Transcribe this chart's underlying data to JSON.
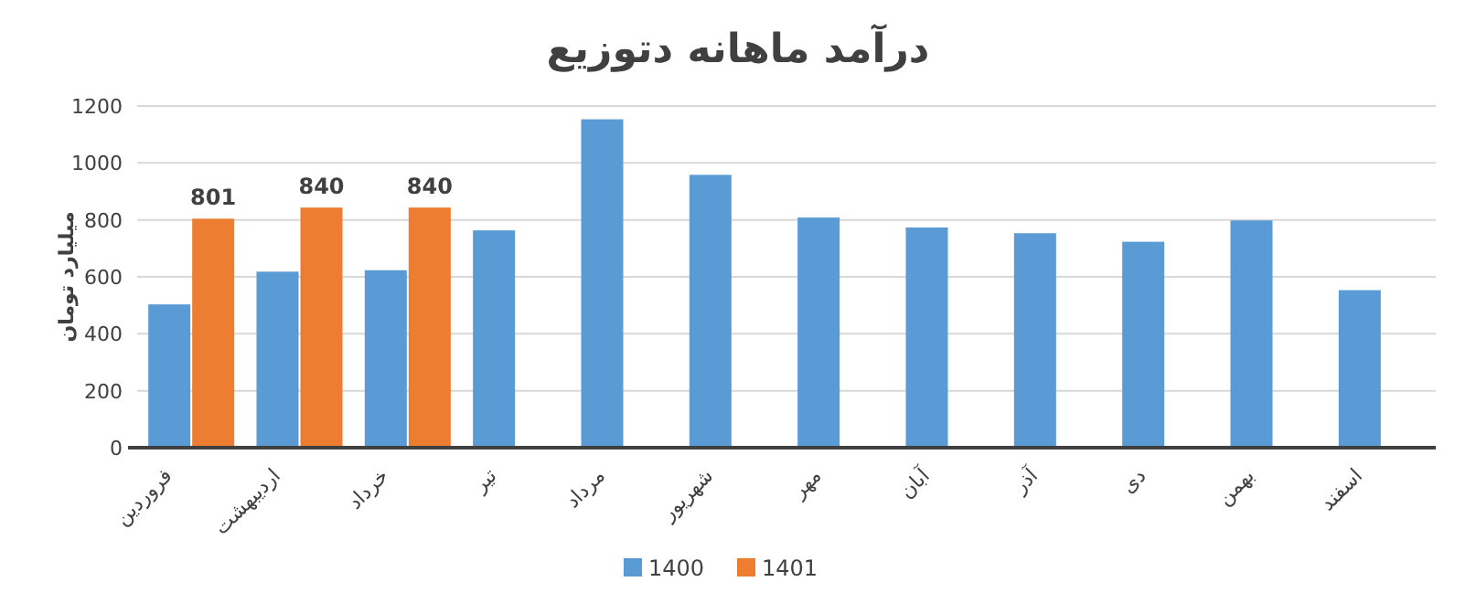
{
  "chart_data": {
    "type": "bar",
    "title": "درآمد ماهانه دتوزیع",
    "ylabel": "میلیارد تومان",
    "categories": [
      "فروردین",
      "اردیبهشت",
      "خرداد",
      "تیر",
      "مرداد",
      "شهریور",
      "مهر",
      "آبان",
      "آذر",
      "دی",
      "بهمن",
      "اسفند"
    ],
    "series": [
      {
        "name": "1400",
        "color": "#5b9bd5",
        "values": [
          500,
          615,
          620,
          760,
          1150,
          955,
          805,
          770,
          750,
          720,
          795,
          550
        ]
      },
      {
        "name": "1401",
        "color": "#ed7d31",
        "values": [
          801,
          840,
          840,
          null,
          null,
          null,
          null,
          null,
          null,
          null,
          null,
          null
        ],
        "value_labels": [
          "801",
          "840",
          "840",
          null,
          null,
          null,
          null,
          null,
          null,
          null,
          null,
          null
        ]
      }
    ],
    "ylim": [
      0,
      1200
    ],
    "yticks": [
      0,
      200,
      400,
      600,
      800,
      1000,
      1200
    ],
    "grid": "y",
    "legend": "bottom"
  }
}
